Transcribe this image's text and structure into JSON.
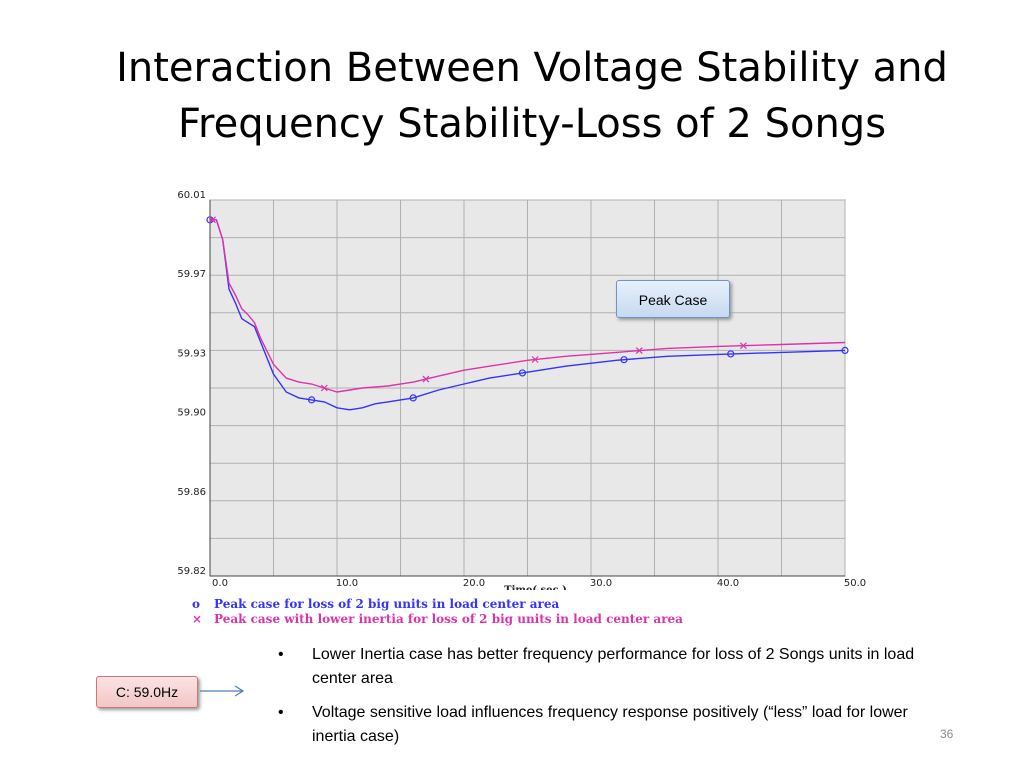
{
  "slide": {
    "title_line1": "Interaction Between Voltage Stability and",
    "title_line2": "Frequency Stability-Loss of 2 Songs",
    "page_number": "36"
  },
  "callouts": {
    "peak_case": "Peak Case",
    "c_value": "C: 59.0Hz"
  },
  "bullets": [
    "Lower Inertia case has better frequency performance for loss of 2 Songs units in load center area",
    "Voltage sensitive load influences frequency response positively (“less” load for lower inertia case)"
  ],
  "bullet_glyph": "•",
  "legend_markers": {
    "circle": "o",
    "cross": "×"
  },
  "chart_data": {
    "type": "line",
    "xlabel": "Time( sec )",
    "ylabel": "",
    "xlim": [
      0,
      50
    ],
    "ylim": [
      59.82,
      60.01
    ],
    "x_ticks": [
      0,
      10,
      20,
      30,
      40,
      50
    ],
    "x_tick_labels": [
      "0.0",
      "10.0",
      "20.0",
      "30.0",
      "40.0",
      "50.0"
    ],
    "y_ticks": [
      59.82,
      59.86,
      59.9,
      59.93,
      59.97,
      60.01
    ],
    "y_tick_labels": [
      "59.82",
      "59.86",
      "59.90",
      "59.93",
      "59.97",
      "60.01"
    ],
    "grid": true,
    "grid_color": "#b0b0b0",
    "plot_bg": "#e8e8e8",
    "series": [
      {
        "name": "Peak case for loss of 2 big units in load center area",
        "color": "#3333ff",
        "marker": "circle",
        "x": [
          0,
          0.5,
          1,
          1.5,
          2,
          2.5,
          3,
          3.5,
          4,
          5,
          6,
          7,
          8,
          9,
          10,
          11,
          12,
          13,
          14,
          16,
          18,
          20,
          22,
          25,
          28,
          32,
          36,
          40,
          45,
          50
        ],
        "y": [
          60.0,
          60.0,
          59.99,
          59.965,
          59.958,
          59.95,
          59.948,
          59.946,
          59.938,
          59.922,
          59.913,
          59.91,
          59.909,
          59.908,
          59.905,
          59.904,
          59.905,
          59.907,
          59.908,
          59.91,
          59.914,
          59.917,
          59.92,
          59.923,
          59.926,
          59.929,
          59.931,
          59.932,
          59.933,
          59.934
        ],
        "marker_x": [
          0,
          8,
          16,
          24.6,
          32.6,
          41,
          50
        ]
      },
      {
        "name": "Peak case with lower inertia for loss of 2 big units in load center area",
        "color": "#dd33aa",
        "marker": "cross",
        "x": [
          0,
          0.5,
          1,
          1.5,
          2,
          2.5,
          3,
          3.5,
          4,
          5,
          6,
          7,
          8,
          9,
          10,
          11,
          12,
          14,
          16,
          18,
          20,
          22,
          25,
          28,
          32,
          36,
          40,
          45,
          50
        ],
        "y": [
          60.0,
          60.0,
          59.99,
          59.968,
          59.962,
          59.955,
          59.952,
          59.948,
          59.94,
          59.927,
          59.92,
          59.918,
          59.917,
          59.915,
          59.913,
          59.914,
          59.915,
          59.916,
          59.918,
          59.921,
          59.924,
          59.926,
          59.929,
          59.931,
          59.933,
          59.935,
          59.936,
          59.937,
          59.938
        ],
        "marker_x": [
          0.2,
          9,
          17,
          25.6,
          33.8,
          42
        ]
      }
    ]
  }
}
